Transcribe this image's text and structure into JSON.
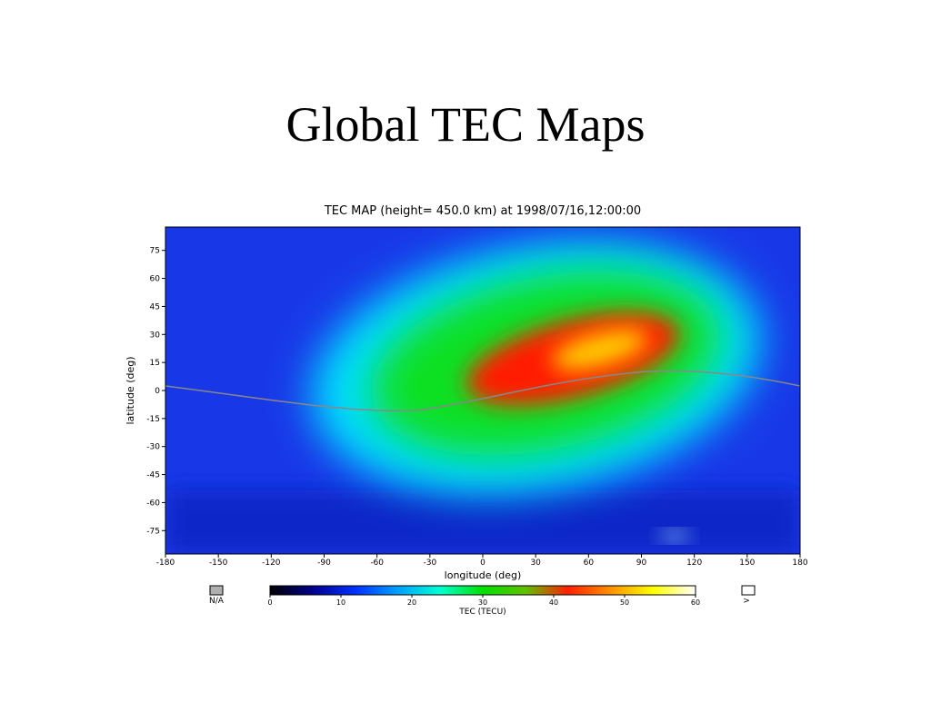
{
  "slide_title": "Global TEC Maps",
  "chart_data": {
    "type": "map",
    "title": "TEC MAP (height= 450.0 km) at 1998/07/16,12:00:00",
    "x_label": "longitude (deg)",
    "y_label": "latitude (deg)",
    "xlim": [
      -180,
      180
    ],
    "xticks": [
      -180,
      -150,
      -120,
      -90,
      -60,
      -30,
      0,
      30,
      60,
      90,
      120,
      150,
      180
    ],
    "ylim": [
      -87.5,
      87.5
    ],
    "yticks": [
      75,
      60,
      45,
      30,
      15,
      0,
      -15,
      -30,
      -45,
      -60,
      -75
    ],
    "colorbar": {
      "label": "TEC (TECU)",
      "lim": [
        0,
        60
      ],
      "ticks": [
        0,
        10,
        20,
        30,
        40,
        50,
        60
      ],
      "colors": [
        "#000000",
        "#00008c",
        "#0030ff",
        "#00a0ff",
        "#00ffd0",
        "#00e000",
        "#60c000",
        "#ff2000",
        "#ff9000",
        "#ffff00",
        "#ffffff"
      ],
      "na_label": "N/A",
      "na_color": "#b0b0b0",
      "over_label": ">",
      "over_color": "#ffffff"
    }
  }
}
